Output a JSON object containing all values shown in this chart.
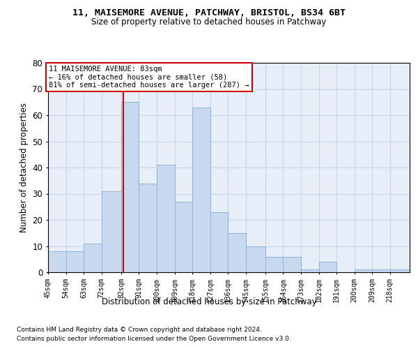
{
  "title1": "11, MAISEMORE AVENUE, PATCHWAY, BRISTOL, BS34 6BT",
  "title2": "Size of property relative to detached houses in Patchway",
  "xlabel": "Distribution of detached houses by size in Patchway",
  "ylabel": "Number of detached properties",
  "footnote1": "Contains HM Land Registry data © Crown copyright and database right 2024.",
  "footnote2": "Contains public sector information licensed under the Open Government Licence v3.0.",
  "annotation_line1": "11 MAISEMORE AVENUE: 83sqm",
  "annotation_line2": "← 16% of detached houses are smaller (58)",
  "annotation_line3": "81% of semi-detached houses are larger (287) →",
  "property_size": 83,
  "bar_color": "#c8d8ee",
  "bar_edge_color": "#8ab4d8",
  "vline_color": "#cc0000",
  "grid_color": "#c8d4e8",
  "background_color": "#e8eef8",
  "bin_edges": [
    45,
    54,
    63,
    72,
    82,
    91,
    100,
    109,
    118,
    127,
    136,
    145,
    155,
    164,
    173,
    182,
    191,
    200,
    209,
    218,
    228
  ],
  "counts": [
    8,
    8,
    11,
    31,
    65,
    34,
    41,
    27,
    63,
    23,
    15,
    10,
    6,
    6,
    1,
    4,
    0,
    1,
    1,
    1
  ],
  "ylim": [
    0,
    80
  ],
  "yticks": [
    0,
    10,
    20,
    30,
    40,
    50,
    60,
    70,
    80
  ]
}
